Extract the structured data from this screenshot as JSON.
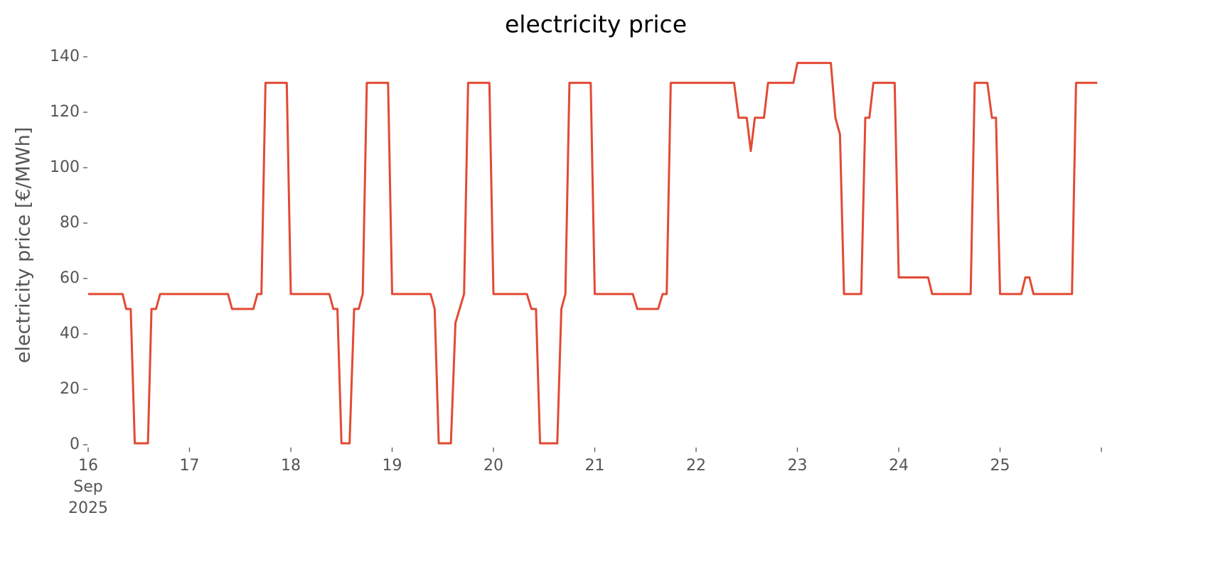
{
  "chart_data": {
    "type": "line",
    "title": "electricity price",
    "y_label": "electricity price [€/MWh]",
    "color": "#e24a33",
    "x": [
      16,
      16.34,
      16.375,
      16.42,
      16.46,
      16.59,
      16.625,
      16.67,
      16.71,
      17.38,
      17.42,
      17.63,
      17.67,
      17.71,
      17.75,
      17.96,
      18,
      18.38,
      18.42,
      18.46,
      18.5,
      18.58,
      18.625,
      18.67,
      18.71,
      18.75,
      18.96,
      19,
      19.38,
      19.42,
      19.46,
      19.58,
      19.625,
      19.71,
      19.75,
      19.96,
      20,
      20.33,
      20.375,
      20.42,
      20.46,
      20.63,
      20.67,
      20.71,
      20.75,
      20.96,
      21,
      21.375,
      21.42,
      21.625,
      21.67,
      21.71,
      21.75,
      22.375,
      22.42,
      22.5,
      22.54,
      22.58,
      22.67,
      22.71,
      22.96,
      23,
      23.33,
      23.375,
      23.42,
      23.46,
      23.63,
      23.67,
      23.71,
      23.75,
      23.96,
      24,
      24.29,
      24.33,
      24.71,
      24.75,
      24.875,
      24.92,
      24.96,
      25,
      25.21,
      25.25,
      25.29,
      25.33,
      25.71,
      25.75,
      25.96
    ],
    "values": [
      54.4,
      54.4,
      49,
      49,
      0.5,
      0.5,
      49,
      49,
      54.4,
      54.4,
      49,
      49,
      54.4,
      54.4,
      130.6,
      130.6,
      54.4,
      54.4,
      49,
      49,
      0.5,
      0.5,
      49,
      49,
      54.4,
      130.6,
      130.6,
      54.4,
      54.4,
      49,
      0.5,
      0.5,
      44,
      54.4,
      130.6,
      130.6,
      54.4,
      54.4,
      49,
      49,
      0.5,
      0.5,
      49,
      54.4,
      130.6,
      130.6,
      54.4,
      54.4,
      49,
      49,
      54.4,
      54.4,
      130.6,
      130.6,
      118,
      118,
      106,
      118,
      118,
      130.6,
      130.6,
      137.8,
      137.8,
      118,
      112,
      54.4,
      54.4,
      118,
      118,
      130.6,
      130.6,
      60.4,
      60.4,
      54.4,
      54.4,
      130.6,
      130.6,
      118,
      118,
      54.4,
      54.4,
      60.4,
      60.4,
      54.4,
      54.4,
      130.6,
      130.6
    ],
    "xlim": [
      16,
      26
    ],
    "xticks": [
      {
        "value": 16,
        "label": "16\nSep\n2025"
      },
      17,
      18,
      19,
      20,
      21,
      22,
      23,
      24,
      25,
      {
        "value": 26,
        "label": null
      }
    ],
    "ylim": [
      0,
      140
    ],
    "yticks": [
      0,
      20,
      40,
      60,
      80,
      100,
      120,
      140
    ],
    "grid": false
  }
}
